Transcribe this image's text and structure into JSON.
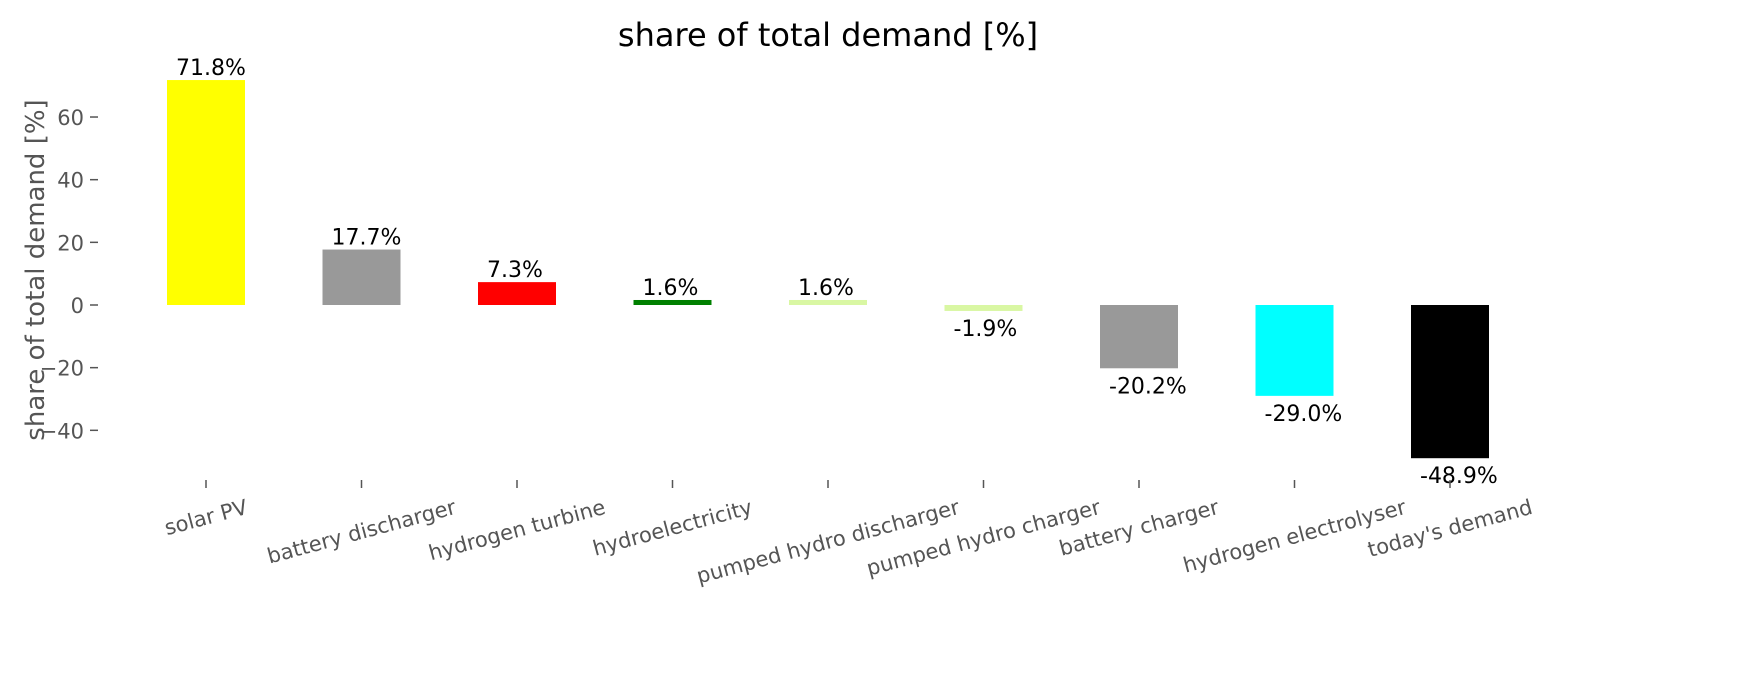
{
  "chart_data": {
    "type": "bar",
    "title": "share of total demand [%]",
    "xlabel": "",
    "ylabel": "share of total demand [%]",
    "ylim": [
      -55,
      75
    ],
    "yticks": [
      -40,
      -20,
      0,
      20,
      40,
      60
    ],
    "grid": false,
    "categories": [
      "solar PV",
      "battery discharger",
      "hydrogen turbine",
      "hydroelectricity",
      "pumped hydro discharger",
      "pumped hydro charger",
      "battery charger",
      "hydrogen electrolyser",
      "today's demand"
    ],
    "values": [
      71.8,
      17.7,
      7.3,
      1.6,
      1.6,
      -1.9,
      -20.2,
      -29.0,
      -48.9
    ],
    "data_labels": [
      "71.8%",
      "17.7%",
      "7.3%",
      "1.6%",
      "1.6%",
      "-1.9%",
      "-20.2%",
      "-29.0%",
      "-48.9%"
    ],
    "colors": [
      "#ffff00",
      "#999999",
      "#ff0000",
      "#008000",
      "#d9f7a3",
      "#d9f7a3",
      "#999999",
      "#00ffff",
      "#000000"
    ]
  }
}
